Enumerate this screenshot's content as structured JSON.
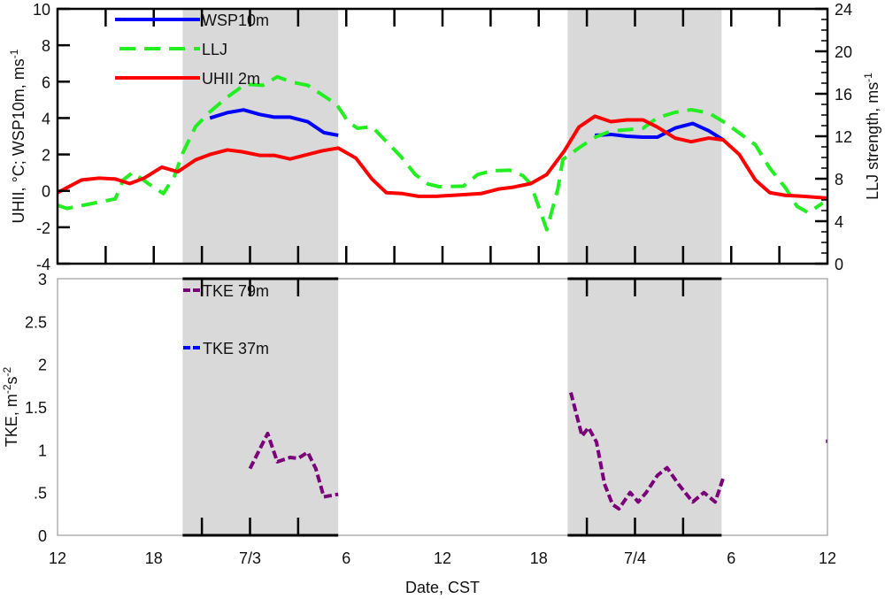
{
  "chart_data": [
    {
      "type": "line",
      "panel": "top",
      "xlabel": "Date, CST",
      "ylabel": "UHII, °C; WSP10m, ms",
      "ylabel_sup": "-1",
      "y2label": "LLJ strength, ms",
      "y2label_sup": "-1",
      "x_unit": "hours since 12:00 7/2",
      "xlim": [
        0,
        48
      ],
      "ylim": [
        -4,
        10
      ],
      "y2lim": [
        0,
        24
      ],
      "yticks": [
        "-4",
        "-2",
        "0",
        "2",
        "4",
        "6",
        "8",
        "10"
      ],
      "y2ticks": [
        "0",
        "4",
        "8",
        "12",
        "16",
        "20",
        "24"
      ],
      "night_shading_hours": [
        [
          7.8,
          17.5
        ],
        [
          31.8,
          41.4
        ]
      ],
      "legend_placement": "top-left",
      "series": [
        {
          "name": "WSP10m",
          "axis": "left",
          "color": "#0000ff",
          "style": "solid",
          "points": [
            [
              9.5,
              4.0
            ],
            [
              10.6,
              4.3
            ],
            [
              11.6,
              4.45
            ],
            [
              12.6,
              4.2
            ],
            [
              13.5,
              4.05
            ],
            [
              14.5,
              4.05
            ],
            [
              15.6,
              3.8
            ],
            [
              16.6,
              3.2
            ],
            [
              17.5,
              3.05
            ],
            null,
            [
              33.5,
              3.05
            ],
            [
              34.5,
              3.1
            ],
            [
              35.5,
              3.0
            ],
            [
              36.5,
              2.95
            ],
            [
              37.4,
              2.95
            ],
            [
              38.5,
              3.45
            ],
            [
              39.6,
              3.7
            ],
            [
              40.6,
              3.3
            ],
            [
              41.5,
              2.8
            ]
          ]
        },
        {
          "name": "LLJ",
          "axis": "right",
          "color": "#22ee22",
          "style": "dashed",
          "points": [
            [
              0,
              5.5
            ],
            [
              0.6,
              5.2
            ],
            [
              3.6,
              6.1
            ],
            [
              4.1,
              7.9
            ],
            [
              4.7,
              8.6
            ],
            [
              5.6,
              7.6
            ],
            [
              6.6,
              6.6
            ],
            [
              7.3,
              8.3
            ],
            [
              7.8,
              10.4
            ],
            [
              8.6,
              12.9
            ],
            [
              9.5,
              14.3
            ],
            [
              10.6,
              15.7
            ],
            [
              11.7,
              16.9
            ],
            [
              12.8,
              16.8
            ],
            [
              13.7,
              17.6
            ],
            [
              14.6,
              17.1
            ],
            [
              15.6,
              16.8
            ],
            [
              16.5,
              15.9
            ],
            [
              17.4,
              15.0
            ],
            [
              18.1,
              13.4
            ],
            [
              18.7,
              12.75
            ],
            [
              19.6,
              12.9
            ],
            [
              20.5,
              11.5
            ],
            [
              21.4,
              10.1
            ],
            [
              22.3,
              8.4
            ],
            [
              23.1,
              7.5
            ],
            [
              23.8,
              7.25
            ],
            [
              25.3,
              7.3
            ],
            [
              26.2,
              8.4
            ],
            [
              27.1,
              8.75
            ],
            [
              28.2,
              8.8
            ],
            [
              29.0,
              8.3
            ],
            [
              29.5,
              7.5
            ],
            [
              30.5,
              3.2
            ],
            [
              31.2,
              7.1
            ],
            [
              31.5,
              9.8
            ],
            [
              32.5,
              10.9
            ],
            [
              33.5,
              11.9
            ],
            [
              34.5,
              12.5
            ],
            [
              35.4,
              12.6
            ],
            [
              36.5,
              12.75
            ],
            [
              37.4,
              13.75
            ],
            [
              38.5,
              14.25
            ],
            [
              39.5,
              14.5
            ],
            [
              40.6,
              14.2
            ],
            [
              41.7,
              13.2
            ],
            [
              42.6,
              12.2
            ],
            [
              43.5,
              11.2
            ],
            [
              44.4,
              9.0
            ],
            [
              45.4,
              7.1
            ],
            [
              46.1,
              5.4
            ],
            [
              46.8,
              4.8
            ],
            [
              47.7,
              5.7
            ]
          ]
        },
        {
          "name": "UHII 2m",
          "axis": "left",
          "color": "#ff0000",
          "style": "solid",
          "points": [
            [
              0,
              -0.1
            ],
            [
              1.5,
              0.6
            ],
            [
              2.6,
              0.7
            ],
            [
              3.6,
              0.65
            ],
            [
              4.5,
              0.4
            ],
            [
              5.4,
              0.7
            ],
            [
              6.5,
              1.3
            ],
            [
              7.5,
              1.05
            ],
            [
              8.6,
              1.7
            ],
            [
              9.5,
              2.0
            ],
            [
              10.6,
              2.25
            ],
            [
              11.5,
              2.15
            ],
            [
              12.6,
              1.95
            ],
            [
              13.5,
              1.95
            ],
            [
              14.5,
              1.75
            ],
            [
              15.6,
              2.0
            ],
            [
              16.5,
              2.2
            ],
            [
              17.5,
              2.35
            ],
            [
              18.6,
              1.8
            ],
            [
              19.6,
              0.65
            ],
            [
              20.5,
              -0.1
            ],
            [
              21.5,
              -0.15
            ],
            [
              22.5,
              -0.3
            ],
            [
              23.6,
              -0.3
            ],
            [
              26.4,
              -0.15
            ],
            [
              27.5,
              0.1
            ],
            [
              28.4,
              0.2
            ],
            [
              29.5,
              0.4
            ],
            [
              30.5,
              0.9
            ],
            [
              31.6,
              2.2
            ],
            [
              32.5,
              3.5
            ],
            [
              33.5,
              4.1
            ],
            [
              34.5,
              3.8
            ],
            [
              35.5,
              3.9
            ],
            [
              36.5,
              3.9
            ],
            [
              37.4,
              3.5
            ],
            [
              38.5,
              2.9
            ],
            [
              39.5,
              2.7
            ],
            [
              40.6,
              2.9
            ],
            [
              41.5,
              2.8
            ],
            [
              42.5,
              2.0
            ],
            [
              43.5,
              0.6
            ],
            [
              44.4,
              -0.1
            ],
            [
              45.4,
              -0.25
            ],
            [
              46.5,
              -0.3
            ],
            [
              48,
              -0.4
            ]
          ]
        }
      ]
    },
    {
      "type": "line",
      "panel": "bottom",
      "ylabel": "TKE, m",
      "ylabel_sup1": "-2",
      "ylabel_mid": "s",
      "ylabel_sup2": "-2",
      "ylim": [
        0,
        3
      ],
      "yticks": [
        "0",
        ".5",
        "1",
        "1.5",
        "2",
        "2.5",
        "3"
      ],
      "xticks": [
        "12",
        "18",
        "7/3",
        "6",
        "12",
        "18",
        "7/4",
        "6",
        "12"
      ],
      "xtick_hours": [
        0,
        6,
        12,
        18,
        24,
        30,
        36,
        42,
        48
      ],
      "series": [
        {
          "name": "TKE 79m",
          "color": "#7a007a",
          "style": "dashed",
          "points": [
            [
              12.0,
              0.78
            ],
            [
              13.1,
              1.19
            ],
            [
              13.7,
              0.86
            ],
            [
              14.5,
              0.91
            ],
            [
              15.0,
              0.9
            ],
            [
              15.6,
              0.97
            ],
            [
              16.1,
              0.78
            ],
            [
              16.6,
              0.45
            ],
            [
              17.5,
              0.48
            ],
            null,
            [
              32.0,
              1.67
            ],
            [
              32.7,
              1.16
            ],
            [
              33.1,
              1.26
            ],
            [
              33.6,
              1.09
            ],
            [
              34.1,
              0.6
            ],
            [
              34.6,
              0.36
            ],
            [
              35.0,
              0.31
            ],
            [
              35.7,
              0.5
            ],
            [
              36.2,
              0.39
            ],
            [
              36.7,
              0.5
            ],
            [
              37.4,
              0.7
            ],
            [
              38.0,
              0.79
            ],
            [
              38.7,
              0.6
            ],
            [
              39.6,
              0.39
            ],
            [
              40.3,
              0.5
            ],
            [
              41.0,
              0.39
            ],
            [
              41.5,
              0.67
            ],
            null,
            [
              47.9,
              1.1
            ],
            [
              48,
              1.1
            ]
          ]
        },
        {
          "name": "TKE 37m",
          "color": "#0000ff",
          "style": "dashed",
          "points": []
        }
      ]
    }
  ]
}
